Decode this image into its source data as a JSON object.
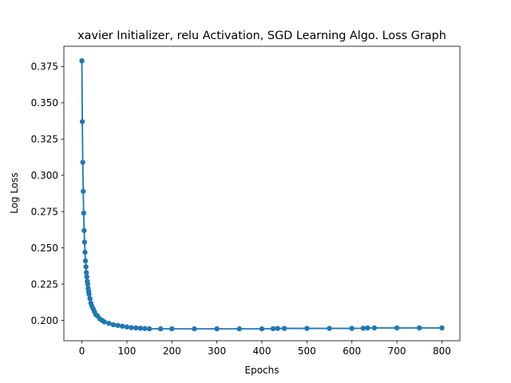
{
  "chart_data": {
    "type": "line",
    "title": "xavier Initializer, relu Activation, SGD Learning Algo. Loss Graph",
    "xlabel": "Epochs",
    "ylabel": "Log Loss",
    "xlim": [
      -40,
      840
    ],
    "ylim": [
      0.186,
      0.389
    ],
    "xticks": [
      0,
      100,
      200,
      300,
      400,
      500,
      600,
      700,
      800
    ],
    "yticks": [
      0.2,
      0.225,
      0.25,
      0.275,
      0.3,
      0.325,
      0.35,
      0.375
    ],
    "xtick_labels": [
      "0",
      "100",
      "200",
      "300",
      "400",
      "500",
      "600",
      "700",
      "800"
    ],
    "ytick_labels": [
      "0.200",
      "0.225",
      "0.250",
      "0.275",
      "0.300",
      "0.325",
      "0.350",
      "0.375"
    ],
    "grid": false,
    "marker": "circle",
    "color": "#1f77b4",
    "series": [
      {
        "x": [
          0,
          1,
          2,
          3,
          4,
          5,
          6,
          7,
          8,
          9,
          10,
          11,
          12,
          13,
          14,
          15,
          16,
          18,
          20,
          22,
          25,
          28,
          31,
          35,
          40,
          45,
          50,
          60,
          70,
          80,
          90,
          100,
          110,
          120,
          130,
          140,
          150,
          175,
          200,
          250,
          300,
          350,
          400,
          425,
          435,
          450,
          500,
          550,
          600,
          625,
          635,
          650,
          700,
          750,
          800
        ],
        "y": [
          0.379,
          0.337,
          0.309,
          0.289,
          0.274,
          0.262,
          0.254,
          0.247,
          0.241,
          0.237,
          0.233,
          0.23,
          0.227,
          0.225,
          0.222,
          0.22,
          0.218,
          0.215,
          0.212,
          0.21,
          0.208,
          0.206,
          0.204,
          0.203,
          0.201,
          0.2,
          0.199,
          0.198,
          0.197,
          0.1965,
          0.196,
          0.1955,
          0.195,
          0.1948,
          0.1946,
          0.1944,
          0.1942,
          0.1942,
          0.1942,
          0.1942,
          0.1942,
          0.1942,
          0.1942,
          0.1943,
          0.1945,
          0.1945,
          0.1945,
          0.1945,
          0.1945,
          0.1946,
          0.1948,
          0.1948,
          0.1948,
          0.1948,
          0.1948
        ]
      }
    ]
  }
}
